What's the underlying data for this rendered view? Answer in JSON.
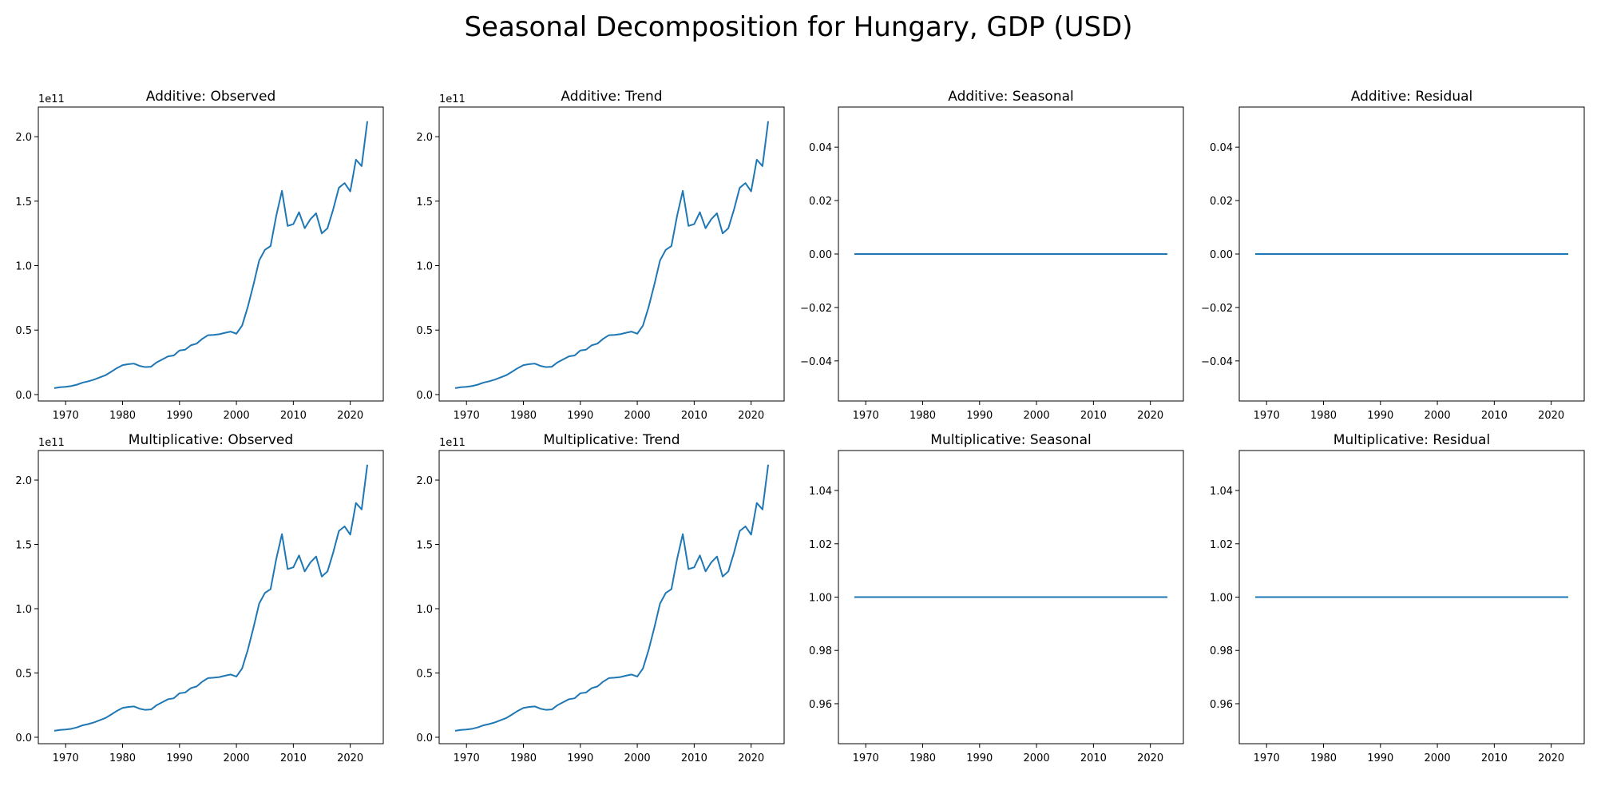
{
  "figure": {
    "title": "Seasonal Decomposition for Hungary, GDP (USD)"
  },
  "chart_data": [
    {
      "type": "line",
      "title": "Additive: Observed",
      "xticks": [
        1970,
        1980,
        1990,
        2000,
        2010,
        2020
      ],
      "yticks": [
        "0.0",
        "0.5",
        "1.0",
        "1.5",
        "2.0"
      ],
      "ytick_values": [
        0.0,
        0.5,
        1.0,
        1.5,
        2.0
      ],
      "offset_text": "1e11",
      "xlim": [
        1965.2,
        2025.8
      ],
      "ylim": [
        -0.05,
        2.23
      ],
      "series_kind": "gdp",
      "series": [
        {
          "x": [],
          "y": []
        }
      ]
    },
    {
      "type": "line",
      "title": "Additive: Trend",
      "xticks": [
        1970,
        1980,
        1990,
        2000,
        2010,
        2020
      ],
      "yticks": [
        "0.0",
        "0.5",
        "1.0",
        "1.5",
        "2.0"
      ],
      "ytick_values": [
        0.0,
        0.5,
        1.0,
        1.5,
        2.0
      ],
      "offset_text": "1e11",
      "xlim": [
        1965.2,
        2025.8
      ],
      "ylim": [
        -0.05,
        2.23
      ],
      "series_kind": "gdp",
      "series": [
        {
          "x": [],
          "y": []
        }
      ]
    },
    {
      "type": "line",
      "title": "Additive: Seasonal",
      "xticks": [
        1970,
        1980,
        1990,
        2000,
        2010,
        2020
      ],
      "yticks": [
        "0.04",
        "0.02",
        "0.00",
        "−0.02",
        "−0.04"
      ],
      "ytick_values": [
        0.04,
        0.02,
        0.0,
        -0.02,
        -0.04
      ],
      "offset_text": "",
      "xlim": [
        1965.2,
        2025.8
      ],
      "ylim": [
        -0.055,
        0.055
      ],
      "series_kind": "flat",
      "flat_value": 0.0,
      "series": [
        {
          "x": [],
          "y": []
        }
      ]
    },
    {
      "type": "line",
      "title": "Additive: Residual",
      "xticks": [
        1970,
        1980,
        1990,
        2000,
        2010,
        2020
      ],
      "yticks": [
        "0.04",
        "0.02",
        "0.00",
        "−0.02",
        "−0.04"
      ],
      "ytick_values": [
        0.04,
        0.02,
        0.0,
        -0.02,
        -0.04
      ],
      "offset_text": "",
      "xlim": [
        1965.2,
        2025.8
      ],
      "ylim": [
        -0.055,
        0.055
      ],
      "series_kind": "flat",
      "flat_value": 0.0,
      "series": [
        {
          "x": [],
          "y": []
        }
      ]
    },
    {
      "type": "line",
      "title": "Multiplicative: Observed",
      "xticks": [
        1970,
        1980,
        1990,
        2000,
        2010,
        2020
      ],
      "yticks": [
        "0.0",
        "0.5",
        "1.0",
        "1.5",
        "2.0"
      ],
      "ytick_values": [
        0.0,
        0.5,
        1.0,
        1.5,
        2.0
      ],
      "offset_text": "1e11",
      "xlim": [
        1965.2,
        2025.8
      ],
      "ylim": [
        -0.05,
        2.23
      ],
      "series_kind": "gdp",
      "series": [
        {
          "x": [],
          "y": []
        }
      ]
    },
    {
      "type": "line",
      "title": "Multiplicative: Trend",
      "xticks": [
        1970,
        1980,
        1990,
        2000,
        2010,
        2020
      ],
      "yticks": [
        "0.0",
        "0.5",
        "1.0",
        "1.5",
        "2.0"
      ],
      "ytick_values": [
        0.0,
        0.5,
        1.0,
        1.5,
        2.0
      ],
      "offset_text": "1e11",
      "xlim": [
        1965.2,
        2025.8
      ],
      "ylim": [
        -0.05,
        2.23
      ],
      "series_kind": "gdp",
      "series": [
        {
          "x": [],
          "y": []
        }
      ]
    },
    {
      "type": "line",
      "title": "Multiplicative: Seasonal",
      "xticks": [
        1970,
        1980,
        1990,
        2000,
        2010,
        2020
      ],
      "yticks": [
        "1.04",
        "1.02",
        "1.00",
        "0.98",
        "0.96"
      ],
      "ytick_values": [
        1.04,
        1.02,
        1.0,
        0.98,
        0.96
      ],
      "offset_text": "",
      "xlim": [
        1965.2,
        2025.8
      ],
      "ylim": [
        0.945,
        1.055
      ],
      "series_kind": "flat",
      "flat_value": 1.0,
      "series": [
        {
          "x": [],
          "y": []
        }
      ]
    },
    {
      "type": "line",
      "title": "Multiplicative: Residual",
      "xticks": [
        1970,
        1980,
        1990,
        2000,
        2010,
        2020
      ],
      "yticks": [
        "1.04",
        "1.02",
        "1.00",
        "0.98",
        "0.96"
      ],
      "ytick_values": [
        1.04,
        1.02,
        1.0,
        0.98,
        0.96
      ],
      "offset_text": "",
      "xlim": [
        1965.2,
        2025.8
      ],
      "ylim": [
        0.945,
        1.055
      ],
      "series_kind": "flat",
      "flat_value": 1.0,
      "series": [
        {
          "x": [],
          "y": []
        }
      ]
    }
  ],
  "gdp_series": {
    "x": [
      1968,
      1969,
      1970,
      1971,
      1972,
      1973,
      1974,
      1975,
      1976,
      1977,
      1978,
      1979,
      1980,
      1981,
      1982,
      1983,
      1984,
      1985,
      1986,
      1987,
      1988,
      1989,
      1990,
      1991,
      1992,
      1993,
      1994,
      1995,
      1996,
      1997,
      1998,
      1999,
      2000,
      2001,
      2002,
      2003,
      2004,
      2005,
      2006,
      2007,
      2008,
      2009,
      2010,
      2011,
      2012,
      2013,
      2014,
      2015,
      2016,
      2017,
      2018,
      2019,
      2020,
      2021,
      2022,
      2023
    ],
    "y": [
      0.05,
      0.057,
      0.06,
      0.066,
      0.077,
      0.093,
      0.103,
      0.116,
      0.133,
      0.15,
      0.177,
      0.205,
      0.228,
      0.236,
      0.24,
      0.222,
      0.213,
      0.216,
      0.25,
      0.273,
      0.296,
      0.303,
      0.342,
      0.348,
      0.382,
      0.395,
      0.432,
      0.46,
      0.463,
      0.468,
      0.479,
      0.488,
      0.472,
      0.535,
      0.68,
      0.853,
      1.04,
      1.122,
      1.152,
      1.387,
      1.58,
      1.308,
      1.322,
      1.414,
      1.29,
      1.36,
      1.406,
      1.25,
      1.29,
      1.436,
      1.604,
      1.64,
      1.576,
      1.822,
      1.772,
      2.12
    ]
  },
  "colors": {
    "line": "#1f77b4",
    "axes": "#000000",
    "background": "#ffffff"
  }
}
